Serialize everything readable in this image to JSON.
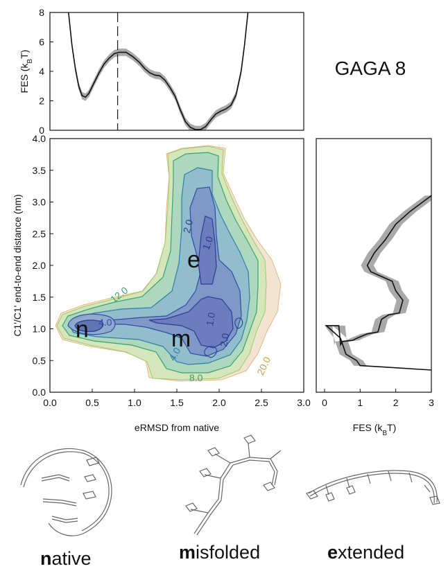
{
  "chart_data": [
    {
      "type": "line",
      "id": "top",
      "title": "GAGA 8",
      "ylabel": "FES (k",
      "ylabel_sub": "B",
      "ylabel_end": "T)",
      "xlim": [
        0,
        3
      ],
      "ylim": [
        0,
        8
      ],
      "yticks": [
        "0",
        "2",
        "4",
        "6",
        "8"
      ],
      "marker_x": 0.8,
      "series": [
        {
          "x": [
            0.22,
            0.26,
            0.3,
            0.34,
            0.38,
            0.42,
            0.46,
            0.52,
            0.58,
            0.64,
            0.7,
            0.76,
            0.82,
            0.9,
            0.98,
            1.06,
            1.12,
            1.18,
            1.24,
            1.3,
            1.36,
            1.42,
            1.48,
            1.54,
            1.6,
            1.66,
            1.72,
            1.78,
            1.84,
            1.9,
            1.96,
            2.02,
            2.08,
            2.14,
            2.2,
            2.26,
            2.3,
            2.34
          ],
          "y": [
            8.0,
            5.8,
            4.2,
            3.0,
            2.35,
            2.25,
            2.5,
            3.2,
            3.9,
            4.5,
            4.9,
            5.2,
            5.3,
            5.3,
            5.0,
            4.6,
            4.2,
            3.9,
            3.75,
            3.7,
            3.4,
            2.9,
            2.3,
            1.4,
            0.6,
            0.2,
            0.05,
            0.05,
            0.25,
            0.7,
            1.1,
            1.3,
            1.45,
            1.7,
            2.4,
            4.0,
            5.8,
            8.0
          ],
          "err": 0.25
        }
      ]
    },
    {
      "type": "contour",
      "id": "main",
      "xlabel": "eRMSD from native",
      "ylabel": "C1'/C1' end-to-end distance (nm)",
      "xlim": [
        0,
        3
      ],
      "ylim": [
        0,
        4
      ],
      "xticks": [
        "0.0",
        "0.5",
        "1.0",
        "1.5",
        "2.0",
        "2.5",
        "3.0"
      ],
      "yticks": [
        "0.0",
        "0.5",
        "1.0",
        "1.5",
        "2.0",
        "2.5",
        "3.0",
        "3.5",
        "4.0"
      ],
      "contour_labels": [
        "4.0",
        "12.0",
        "2.0",
        "1.0",
        "1.0",
        "2.0",
        "4.0",
        "8.0",
        "20.0"
      ],
      "states": [
        {
          "label": "n",
          "x": 0.38,
          "y": 1.0
        },
        {
          "label": "m",
          "x": 1.55,
          "y": 0.85
        },
        {
          "label": "e",
          "x": 1.7,
          "y": 2.1
        }
      ]
    },
    {
      "type": "line",
      "id": "side",
      "xlabel": "FES (k",
      "xlabel_sub": "B",
      "xlabel_end": "T)",
      "xlim": [
        0,
        3
      ],
      "ylim": [
        0,
        4
      ],
      "xticks": [
        "0",
        "1",
        "2",
        "3"
      ],
      "series": [
        {
          "x": [
            3.0,
            2.4,
            2.0,
            1.7,
            1.4,
            1.2,
            1.3,
            1.9,
            2.0,
            2.2,
            2.1,
            1.8,
            1.6,
            1.55,
            1.5,
            1.2,
            0.9,
            0.8,
            0.5,
            0.45,
            0.4,
            0.05,
            0.45,
            0.6,
            0.9,
            1.0,
            1.6,
            3.0
          ],
          "y": [
            3.1,
            2.85,
            2.65,
            2.4,
            2.2,
            2.0,
            1.9,
            1.75,
            1.6,
            1.45,
            1.25,
            1.22,
            1.15,
            1.05,
            0.95,
            0.92,
            0.85,
            0.82,
            0.8,
            0.75,
            1.05,
            1.05,
            0.85,
            0.6,
            0.5,
            0.42,
            0.4,
            0.35
          ],
          "err": 0.18
        }
      ]
    }
  ],
  "captions": [
    {
      "bold": "n",
      "rest": "ative"
    },
    {
      "bold": "m",
      "rest": "isfolded"
    },
    {
      "bold": "e",
      "rest": "xtended"
    }
  ]
}
